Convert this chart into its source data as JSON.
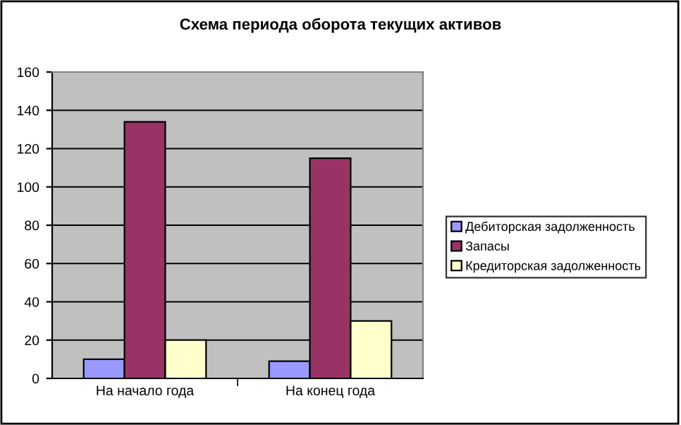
{
  "chart_data": {
    "type": "bar",
    "title": "Схема периода оборота текущих активов",
    "categories": [
      "На начало года",
      "На конец года"
    ],
    "series": [
      {
        "name": "Дебиторская задолженность",
        "color": "#9999ff",
        "values": [
          10,
          9
        ]
      },
      {
        "name": "Запасы",
        "color": "#993366",
        "values": [
          134,
          115
        ]
      },
      {
        "name": "Кредиторская задолженность",
        "color": "#ffffcc",
        "values": [
          20,
          30
        ]
      }
    ],
    "ylim": [
      0,
      160
    ],
    "yticks": [
      0,
      20,
      40,
      60,
      80,
      100,
      120,
      140,
      160
    ],
    "grid": "y",
    "legend": "right"
  }
}
